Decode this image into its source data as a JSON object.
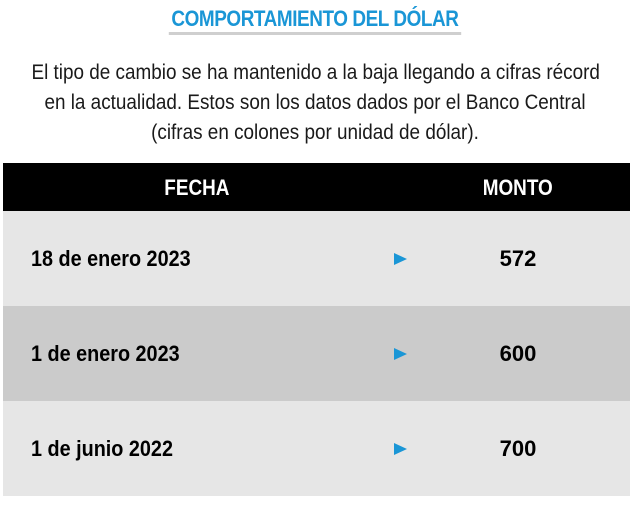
{
  "header": {
    "title": "COMPORTAMIENTO DEL DÓLAR",
    "intro_lines": [
      "El tipo de cambio se ha mantenido a la baja llegando a cifras récord",
      "en la actualidad.  Estos son los datos dados por el Banco Central",
      "(cifras en colones por unidad de dólar)."
    ]
  },
  "colors": {
    "accent": "#1a96d6",
    "header_bg": "#000000",
    "row_light": "#e6e6e6",
    "row_dark": "#cbcbcb"
  },
  "chart_data": {
    "type": "table",
    "columns": [
      "FECHA",
      "MONTO"
    ],
    "rows": [
      {
        "fecha": "18 de enero 2023",
        "monto": "572"
      },
      {
        "fecha": "1 de enero 2023",
        "monto": "600"
      },
      {
        "fecha": "1 de junio 2022",
        "monto": "700"
      }
    ],
    "row_marker_icon": "play-triangle-icon"
  }
}
